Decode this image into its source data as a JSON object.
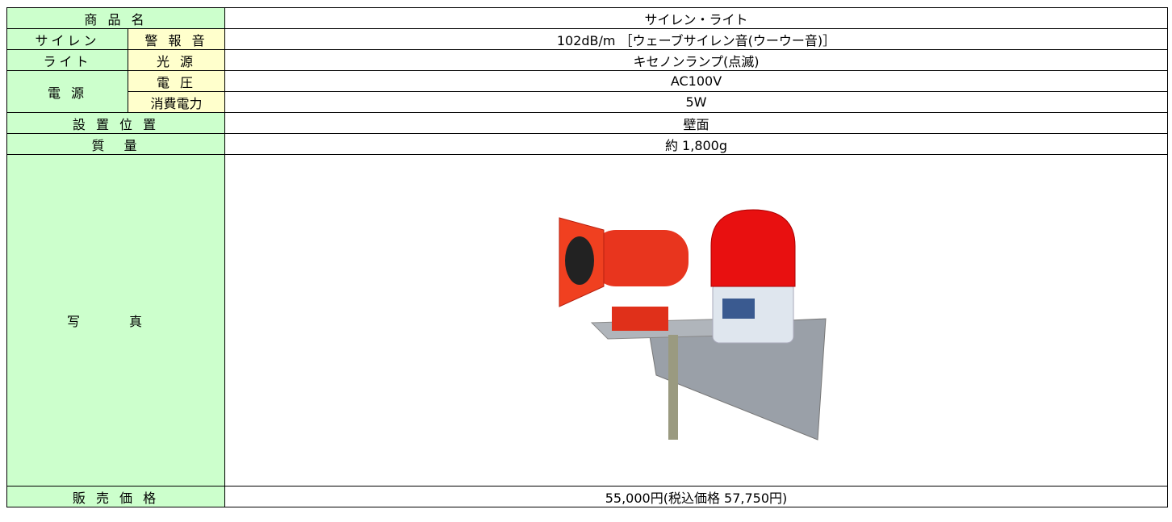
{
  "table": {
    "rows": [
      [
        "商 品 名",
        "サイレン・ライト"
      ],
      [
        "サイレン",
        "警 報 音",
        "102dB/m ［ウェーブサイレン音(ウーウー音)］"
      ],
      [
        "ライト",
        "光 源",
        "キセノンランプ(点滅)"
      ],
      [
        "電 源",
        "電 圧",
        "AC100V"
      ],
      [
        "消費電力",
        "5W"
      ],
      [
        "設 置 位 置",
        "壁面"
      ],
      [
        "質　量",
        "約 1,800g"
      ],
      [
        "写 真"
      ],
      [
        "販 売 価 格",
        "55,000円(税込価格 57,750円)"
      ]
    ]
  }
}
